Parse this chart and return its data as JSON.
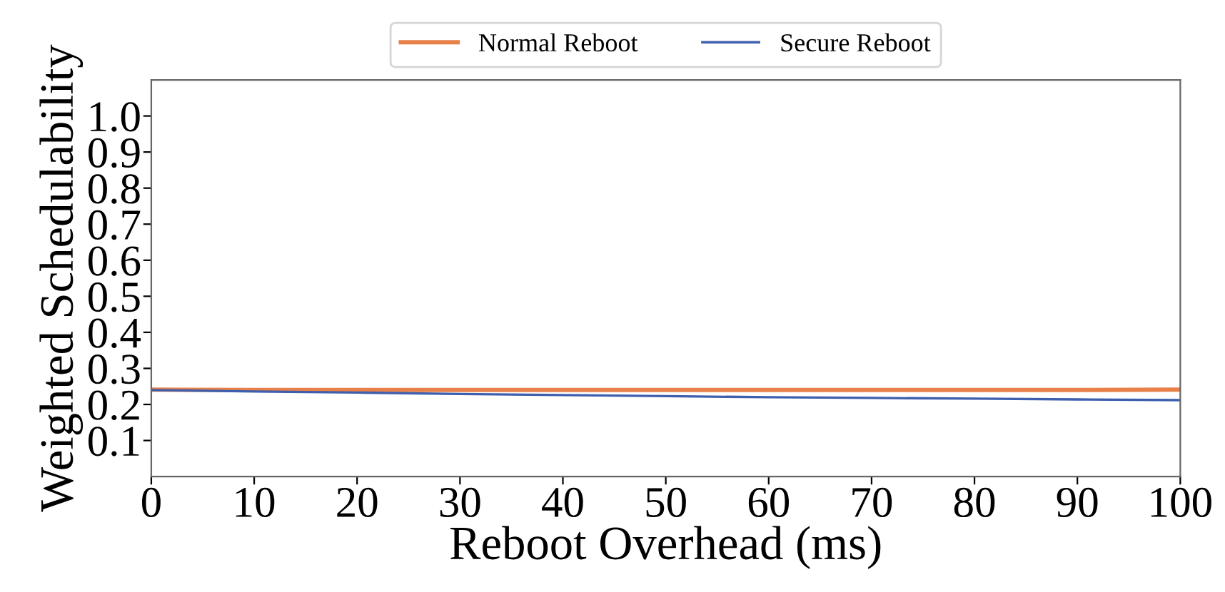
{
  "chart_data": {
    "type": "line",
    "xlabel": "Reboot Overhead (ms)",
    "ylabel": "Weighted Schedulability",
    "x": [
      0,
      10,
      20,
      30,
      40,
      50,
      60,
      70,
      80,
      90,
      100
    ],
    "series": [
      {
        "name": "Normal Reboot",
        "color": "#e8804a",
        "values": [
          0.241,
          0.24,
          0.24,
          0.24,
          0.24,
          0.24,
          0.24,
          0.24,
          0.24,
          0.24,
          0.241
        ]
      },
      {
        "name": "Secure Reboot",
        "color": "#3d5fae",
        "values": [
          0.24,
          0.236,
          0.233,
          0.229,
          0.226,
          0.223,
          0.22,
          0.218,
          0.216,
          0.214,
          0.212
        ]
      }
    ],
    "xlim": [
      0,
      100
    ],
    "xticks": [
      0,
      10,
      20,
      30,
      40,
      50,
      60,
      70,
      80,
      90,
      100
    ],
    "ylim": [
      0,
      1.1
    ],
    "yticks": [
      0.1,
      0.2,
      0.3,
      0.4,
      0.5,
      0.6,
      0.7,
      0.8,
      0.9,
      {
        "value": 1.0,
        "label": "1.0"
      }
    ],
    "grid": false,
    "legend": "top",
    "marker": "none",
    "line_style": "solid"
  }
}
